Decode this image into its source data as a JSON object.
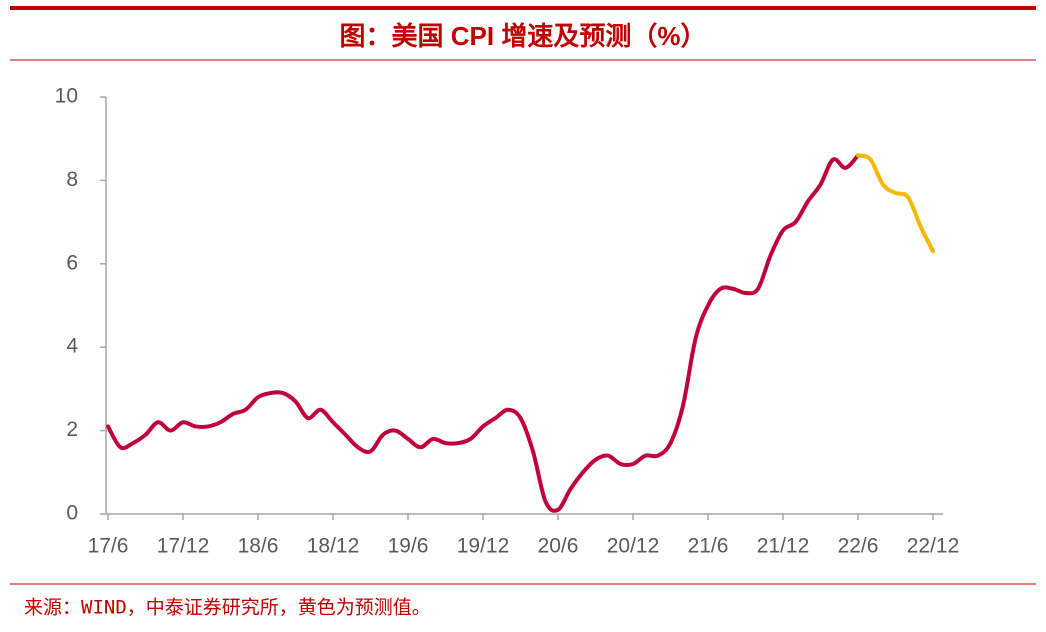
{
  "chart_data": {
    "type": "line",
    "title": "图：美国 CPI 增速及预测（%）",
    "note": "来源：WIND，中泰证券研究所，黄色为预测值。",
    "categories": [
      "17/6",
      null,
      null,
      null,
      null,
      null,
      "17/12",
      null,
      null,
      null,
      null,
      null,
      "18/6",
      null,
      null,
      null,
      null,
      null,
      "18/12",
      null,
      null,
      null,
      null,
      null,
      "19/6",
      null,
      null,
      null,
      null,
      null,
      "19/12",
      null,
      null,
      null,
      null,
      null,
      "20/6",
      null,
      null,
      null,
      null,
      null,
      "20/12",
      null,
      null,
      null,
      null,
      null,
      "21/6",
      null,
      null,
      null,
      null,
      null,
      "21/12",
      null,
      null,
      null,
      null,
      null,
      "22/6",
      null,
      null,
      null,
      null,
      null,
      "22/12"
    ],
    "series": [
      {
        "color": "#c0003c",
        "values": [
          2.1,
          1.6,
          1.7,
          1.9,
          2.2,
          2.0,
          2.2,
          2.1,
          2.1,
          2.2,
          2.4,
          2.5,
          2.8,
          2.9,
          2.9,
          2.7,
          2.3,
          2.5,
          2.2,
          1.9,
          1.6,
          1.5,
          1.9,
          2.0,
          1.8,
          1.6,
          1.8,
          1.7,
          1.7,
          1.8,
          2.1,
          2.3,
          2.5,
          2.3,
          1.5,
          0.3,
          0.1,
          0.6,
          1.0,
          1.3,
          1.4,
          1.2,
          1.2,
          1.4,
          1.4,
          1.7,
          2.6,
          4.2,
          5.0,
          5.4,
          5.4,
          5.3,
          5.4,
          6.2,
          6.8,
          7.0,
          7.5,
          7.9,
          8.5,
          8.3,
          8.6,
          null,
          null,
          null,
          null,
          null,
          null
        ]
      },
      {
        "color": "#f5b800",
        "values": [
          null,
          null,
          null,
          null,
          null,
          null,
          null,
          null,
          null,
          null,
          null,
          null,
          null,
          null,
          null,
          null,
          null,
          null,
          null,
          null,
          null,
          null,
          null,
          null,
          null,
          null,
          null,
          null,
          null,
          null,
          null,
          null,
          null,
          null,
          null,
          null,
          null,
          null,
          null,
          null,
          null,
          null,
          null,
          null,
          null,
          null,
          null,
          null,
          null,
          null,
          null,
          null,
          null,
          null,
          null,
          null,
          null,
          null,
          null,
          null,
          8.6,
          8.5,
          7.9,
          7.7,
          7.6,
          6.9,
          6.3
        ]
      }
    ],
    "ylim": [
      0,
      10
    ],
    "yticks": [
      0,
      2,
      4,
      6,
      8,
      10
    ]
  }
}
